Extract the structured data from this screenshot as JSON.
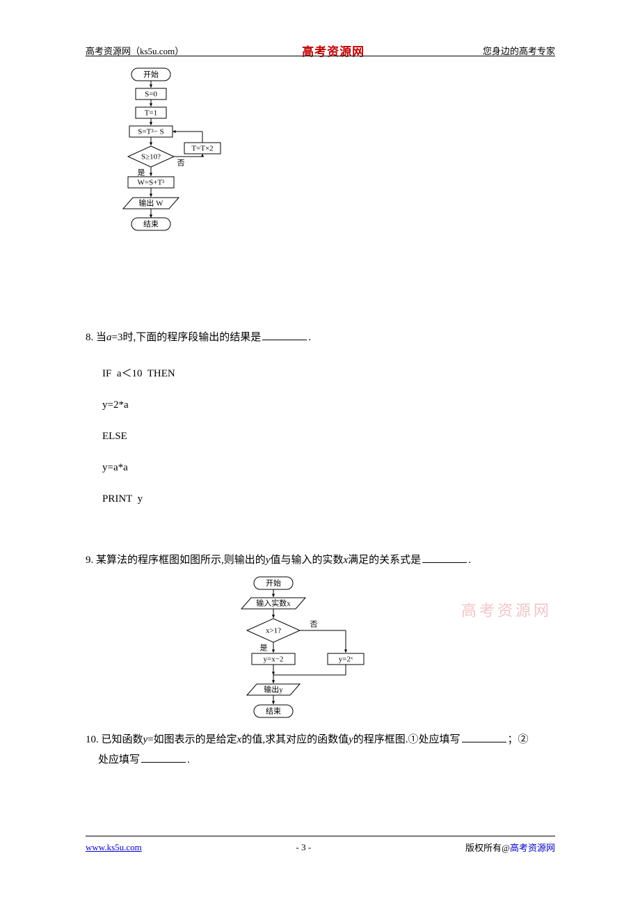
{
  "header": {
    "left": "高考资源网（ks5u.com）",
    "center": "高考资源网",
    "right": "您身边的高考专家"
  },
  "watermark": "高考资源网",
  "footer": {
    "left": "www.ks5u.com",
    "center": "- 3 -",
    "right_prefix": "版权所有@",
    "right_brand": "高考资源网"
  },
  "flowchart1": {
    "nodes": {
      "start": "开始",
      "s0": "S=0",
      "t1": "T=1",
      "calc_s": "S=T²− S",
      "tt2": "T=T×2",
      "cond": "S≥10?",
      "yes": "是",
      "no": "否",
      "w": "W=S+T²",
      "out": "输出 W",
      "end": "结束"
    },
    "nodeFill": "#ffffff",
    "color": "#000000",
    "fontSize": 11,
    "lineWidth": 1
  },
  "q8": {
    "num": "8.",
    "text_a": "当",
    "var_a": "a",
    "text_b": "=3时,下面的程序段输出的结果是",
    "period": ".",
    "code": {
      "l1": "IF  a＜10  THEN",
      "l2": "y=2*a",
      "l3": "ELSE",
      "l4": "y=a*a",
      "l5": "PRINT  y"
    }
  },
  "q9": {
    "num": "9.",
    "text_a": "某算法的程序框图如图所示,则输出的",
    "var_y": "y",
    "text_b": "值与输入的实数",
    "var_x": "x",
    "text_c": "满足的关系式是",
    "period": "."
  },
  "flowchart2": {
    "nodes": {
      "start": "开始",
      "input": "输入实数x",
      "cond": "x>1?",
      "yes": "是",
      "no": "否",
      "a": "y=x−2",
      "b": "y=2ˣ",
      "out": "输出y",
      "end": "结束"
    },
    "nodeFill": "#ffffff",
    "color": "#000000",
    "fontSize": 11,
    "lineWidth": 1
  },
  "q10": {
    "num": "10.",
    "text_a": "已知函数",
    "var_y": "y",
    "text_b": "=如图表示的是给定",
    "var_x": "x",
    "text_c": "的值,求其对应的函数值",
    "var_y2": "y",
    "text_d": "的程序框图.①处应填写",
    "text_e": "；②",
    "text_f": "处应填写",
    "period": "."
  }
}
